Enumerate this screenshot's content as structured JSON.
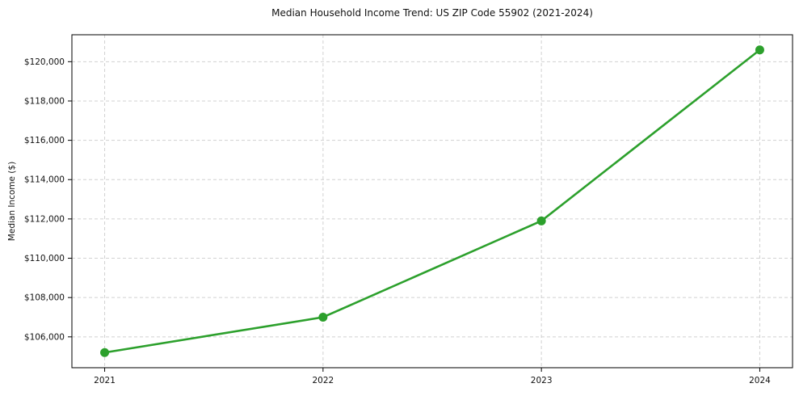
{
  "figure": {
    "background": "#ffffff"
  },
  "chart_data": {
    "type": "line",
    "title": "Median Household Income Trend: US ZIP Code 55902 (2021-2024)",
    "xlabel": "",
    "ylabel": "Median Income ($)",
    "categories": [
      "2021",
      "2022",
      "2023",
      "2024"
    ],
    "x": [
      2021,
      2022,
      2023,
      2024
    ],
    "series": [
      {
        "name": "Median household income",
        "values": [
          105200,
          107000,
          111900,
          120600
        ],
        "color": "#2ca02c",
        "marker": "circle"
      }
    ],
    "y_ticks": [
      106000,
      108000,
      110000,
      112000,
      114000,
      116000,
      118000,
      120000
    ],
    "y_tick_labels": [
      "$106,000",
      "$108,000",
      "$110,000",
      "$112,000",
      "$114,000",
      "$116,000",
      "$118,000",
      "$120,000"
    ],
    "xlim": [
      2020.85,
      2024.15
    ],
    "ylim": [
      104430,
      121370
    ],
    "grid": true,
    "grid_style": "dashed",
    "grid_color": "#c9c9c9",
    "axis_color": "#000000",
    "text_color": "#111111",
    "legend": "none"
  }
}
